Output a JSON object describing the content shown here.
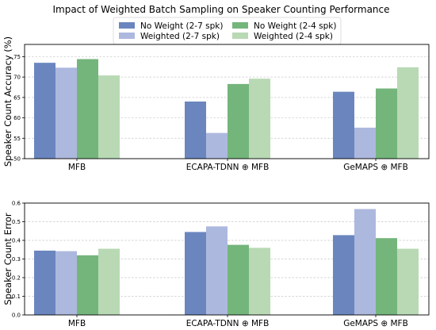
{
  "chart_data": [
    {
      "type": "bar",
      "title": "Impact of Weighted Batch Sampling on Speaker Counting Performance",
      "ylabel": "Speaker Count Accuracy (%)",
      "xlabel": "",
      "categories": [
        "MFB",
        "ECAPA-TDNN ⊕ MFB",
        "GeMAPS ⊕ MFB"
      ],
      "ylim": [
        50,
        78
      ],
      "yticks": [
        "50",
        "55",
        "60",
        "65",
        "70",
        "75"
      ],
      "grid": "y-dashed",
      "legend": "top-center",
      "series": [
        {
          "name": "No Weight (2-7 spk)",
          "color": "#6b86bf",
          "values": [
            73.5,
            64.0,
            66.4
          ]
        },
        {
          "name": "Weighted (2-7 spk)",
          "color": "#adb8de",
          "values": [
            72.3,
            56.3,
            57.6
          ]
        },
        {
          "name": "No Weight (2-4 spk)",
          "color": "#74b57c",
          "values": [
            74.4,
            68.3,
            67.2
          ]
        },
        {
          "name": "Weighted (2-4 spk)",
          "color": "#b8d9b4",
          "values": [
            70.4,
            69.6,
            72.4
          ]
        }
      ]
    },
    {
      "type": "bar",
      "title": "",
      "ylabel": "Speaker Count Error",
      "xlabel": "",
      "categories": [
        "MFB",
        "ECAPA-TDNN ⊕ MFB",
        "GeMAPS ⊕ MFB"
      ],
      "ylim": [
        0,
        0.6
      ],
      "yticks": [
        "0.0",
        "0.1",
        "0.2",
        "0.3",
        "0.4",
        "0.5",
        "0.6"
      ],
      "grid": "y-dashed",
      "series": [
        {
          "name": "No Weight (2-7 spk)",
          "color": "#6b86bf",
          "values": [
            0.345,
            0.445,
            0.428
          ]
        },
        {
          "name": "Weighted (2-7 spk)",
          "color": "#adb8de",
          "values": [
            0.342,
            0.475,
            0.568
          ]
        },
        {
          "name": "No Weight (2-4 spk)",
          "color": "#74b57c",
          "values": [
            0.32,
            0.376,
            0.412
          ]
        },
        {
          "name": "Weighted (2-4 spk)",
          "color": "#b8d9b4",
          "values": [
            0.355,
            0.36,
            0.355
          ]
        }
      ]
    }
  ]
}
